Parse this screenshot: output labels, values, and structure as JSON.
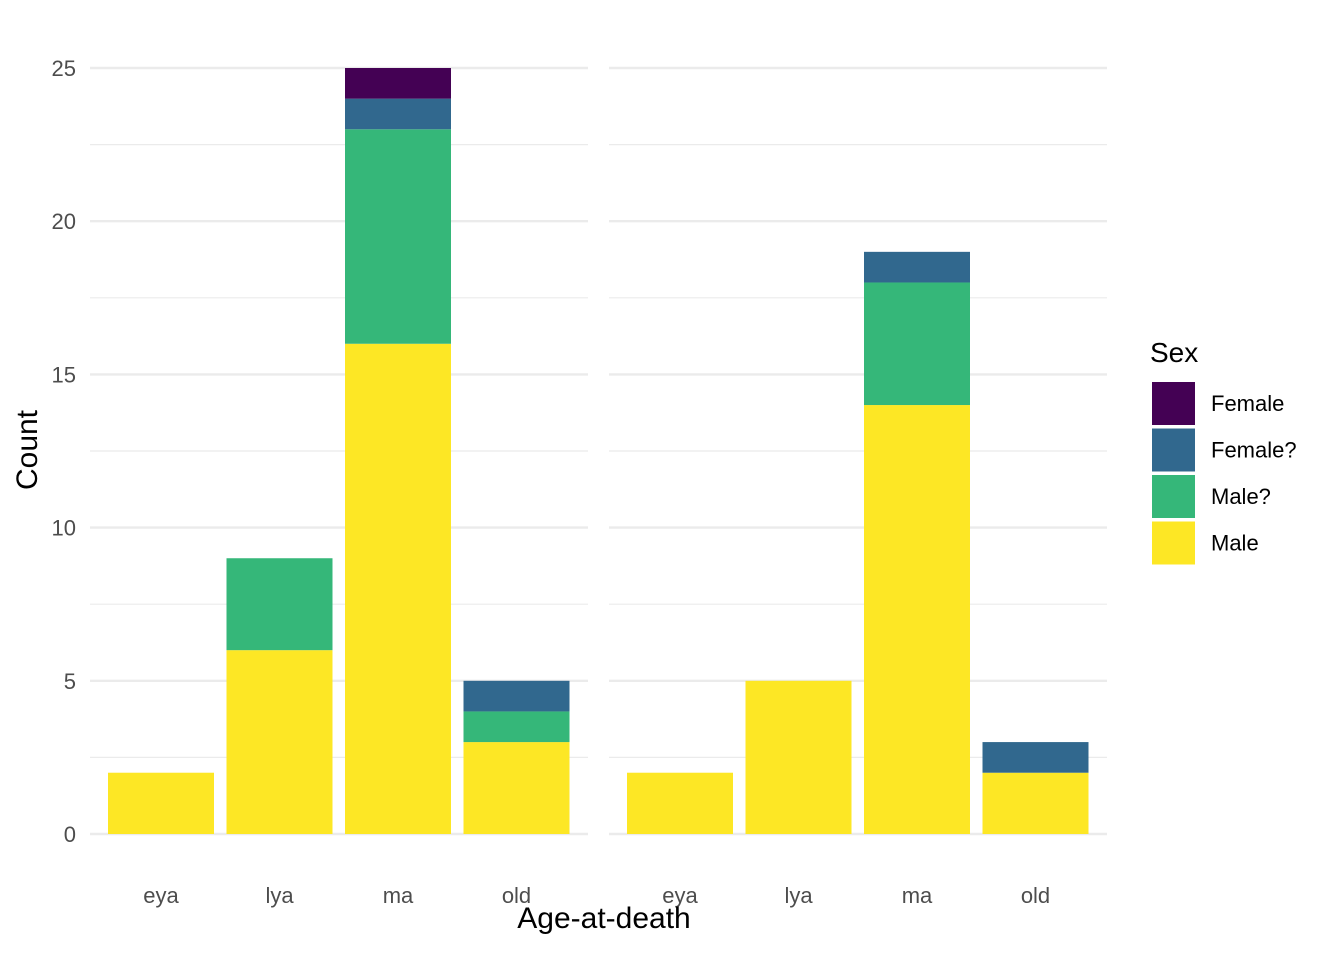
{
  "chart_data": {
    "type": "bar",
    "stacked": true,
    "xlabel": "Age-at-death",
    "ylabel": "Count",
    "ylim": [
      0,
      25
    ],
    "yticks": [
      0,
      5,
      10,
      15,
      20,
      25
    ],
    "grid": true,
    "legend": {
      "title": "Sex",
      "placement": "right",
      "entries": [
        {
          "name": "Female",
          "color": "#440154"
        },
        {
          "name": "Female?",
          "color": "#31688E"
        },
        {
          "name": "Male?",
          "color": "#35B779"
        },
        {
          "name": "Male",
          "color": "#FDE725"
        }
      ]
    },
    "stack_order_bottom_to_top": [
      "Male",
      "Male?",
      "Female?",
      "Female"
    ],
    "panels": [
      {
        "categories": [
          "eya",
          "lya",
          "ma",
          "old"
        ],
        "series": [
          {
            "name": "Male",
            "values": [
              2,
              6,
              16,
              3
            ]
          },
          {
            "name": "Male?",
            "values": [
              0,
              3,
              7,
              1
            ]
          },
          {
            "name": "Female?",
            "values": [
              0,
              0,
              1,
              1
            ]
          },
          {
            "name": "Female",
            "values": [
              0,
              0,
              1,
              0
            ]
          }
        ]
      },
      {
        "categories": [
          "eya",
          "lya",
          "ma",
          "old"
        ],
        "series": [
          {
            "name": "Male",
            "values": [
              2,
              5,
              14,
              2
            ]
          },
          {
            "name": "Male?",
            "values": [
              0,
              0,
              4,
              0
            ]
          },
          {
            "name": "Female?",
            "values": [
              0,
              0,
              1,
              1
            ]
          },
          {
            "name": "Female",
            "values": [
              0,
              0,
              0,
              0
            ]
          }
        ]
      }
    ]
  }
}
